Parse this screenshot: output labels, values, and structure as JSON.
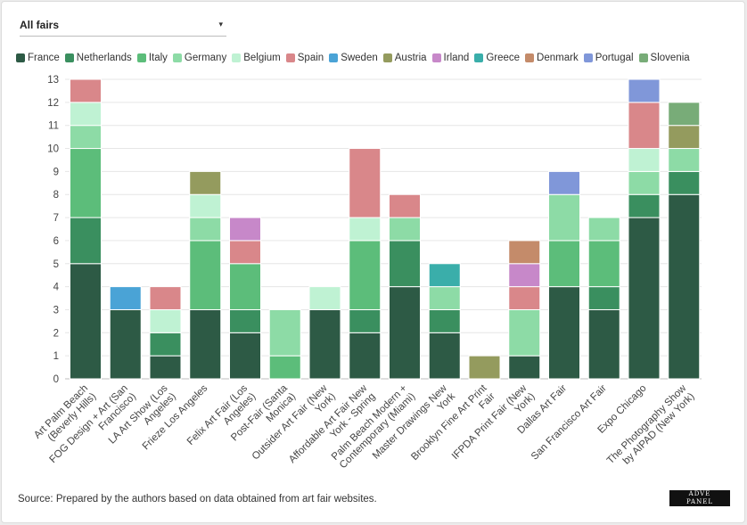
{
  "filter": {
    "selected": "All fairs",
    "caret": "▾"
  },
  "source_note": "Source: Prepared by the authors based on data obtained from art fair websites.",
  "logo_text": "ADVE PANEL",
  "chart_data": {
    "type": "bar",
    "stacked": true,
    "ylim": [
      0,
      13
    ],
    "yticks": [
      0,
      1,
      2,
      3,
      4,
      5,
      6,
      7,
      8,
      9,
      10,
      11,
      12,
      13
    ],
    "grid": true,
    "legend_position": "top-left",
    "categories": [
      "Art Palm Beach (Beverly Hills)",
      "FOG Design + Art (San Francisco)",
      "LA Art Show (Los Angeles)",
      "Frieze Los Angeles",
      "Felix Art Fair (Los Angeles)",
      "Post-Fair (Santa Monica)",
      "Outsider Art Fair (New York)",
      "Affordable Art Fair New York - Spring",
      "Palm Beach Modern + Contemporary (Miami)",
      "Master Drawings New York",
      "Brooklyn Fine Art Print Fair",
      "IFPDA Print Fair (New York)",
      "Dallas Art Fair",
      "San Francisco Art Fair",
      "Expo Chicago",
      "The Photography Show by AIPAD (New York)"
    ],
    "tick_labels": [
      [
        "Art Palm Beach",
        "(Beverly Hills)"
      ],
      [
        "FOG Design + Art (San",
        "Francisco)"
      ],
      [
        "LA Art Show (Los",
        "Angeles)"
      ],
      [
        "Frieze Los Angeles"
      ],
      [
        "Felix Art Fair (Los",
        "Angeles)"
      ],
      [
        "Post-Fair (Santa",
        "Monica)"
      ],
      [
        "Outsider Art Fair (New",
        "York)"
      ],
      [
        "Affordable Art Fair New",
        "York - Spring"
      ],
      [
        "Palm Beach Modern +",
        "Contemporary (Miami)"
      ],
      [
        "Master Drawings New",
        "York"
      ],
      [
        "Brooklyn Fine Art Print",
        "Fair"
      ],
      [
        "IFPDA Print Fair (New",
        "York)"
      ],
      [
        "Dallas Art Fair"
      ],
      [
        "San Francisco Art Fair"
      ],
      [
        "Expo Chicago"
      ],
      [
        "The Photography Show",
        "by AIPAD (New York)"
      ]
    ],
    "series": [
      {
        "name": "France",
        "color": "#2d5a45",
        "values": [
          5,
          3,
          1,
          3,
          2,
          0,
          3,
          2,
          4,
          2,
          0,
          1,
          4,
          3,
          7,
          8
        ]
      },
      {
        "name": "Netherlands",
        "color": "#3a8f5f",
        "values": [
          2,
          0,
          1,
          0,
          1,
          0,
          0,
          1,
          2,
          1,
          0,
          0,
          0,
          1,
          1,
          1
        ]
      },
      {
        "name": "Italy",
        "color": "#5cbd7a",
        "values": [
          3,
          0,
          0,
          3,
          2,
          1,
          0,
          3,
          0,
          0,
          0,
          0,
          2,
          2,
          0,
          0
        ]
      },
      {
        "name": "Germany",
        "color": "#8ddba6",
        "values": [
          1,
          0,
          0,
          1,
          0,
          2,
          0,
          0,
          1,
          1,
          0,
          2,
          2,
          1,
          1,
          1
        ]
      },
      {
        "name": "Belgium",
        "color": "#bff2d3",
        "values": [
          1,
          0,
          1,
          1,
          0,
          0,
          1,
          1,
          0,
          0,
          0,
          0,
          0,
          0,
          1,
          0
        ]
      },
      {
        "name": "Spain",
        "color": "#d9878a",
        "values": [
          1,
          0,
          1,
          0,
          1,
          0,
          0,
          3,
          1,
          0,
          0,
          1,
          0,
          0,
          2,
          0
        ]
      },
      {
        "name": "Sweden",
        "color": "#4aa3d6",
        "values": [
          0,
          1,
          0,
          0,
          0,
          0,
          0,
          0,
          0,
          0,
          0,
          0,
          0,
          0,
          0,
          0
        ]
      },
      {
        "name": "Austria",
        "color": "#949b5e",
        "values": [
          0,
          0,
          0,
          1,
          0,
          0,
          0,
          0,
          0,
          0,
          1,
          0,
          0,
          0,
          0,
          1
        ]
      },
      {
        "name": "Irland",
        "color": "#c788c9",
        "values": [
          0,
          0,
          0,
          0,
          1,
          0,
          0,
          0,
          0,
          0,
          0,
          1,
          0,
          0,
          0,
          0
        ]
      },
      {
        "name": "Greece",
        "color": "#3aaeaa",
        "values": [
          0,
          0,
          0,
          0,
          0,
          0,
          0,
          0,
          0,
          1,
          0,
          0,
          0,
          0,
          0,
          0
        ]
      },
      {
        "name": "Denmark",
        "color": "#c48b6a",
        "values": [
          0,
          0,
          0,
          0,
          0,
          0,
          0,
          0,
          0,
          0,
          0,
          1,
          0,
          0,
          0,
          0
        ]
      },
      {
        "name": "Portugal",
        "color": "#8097d9",
        "values": [
          0,
          0,
          0,
          0,
          0,
          0,
          0,
          0,
          0,
          0,
          0,
          0,
          1,
          0,
          1,
          0
        ]
      },
      {
        "name": "Slovenia",
        "color": "#78ac78",
        "values": [
          0,
          0,
          0,
          0,
          0,
          0,
          0,
          0,
          0,
          0,
          0,
          0,
          0,
          0,
          0,
          1
        ]
      }
    ]
  }
}
